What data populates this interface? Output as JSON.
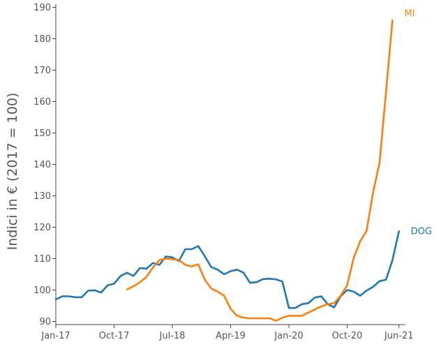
{
  "chart_data": {
    "type": "line",
    "title": "",
    "xlabel": "",
    "ylabel": "Indici in € (2017 = 100)",
    "ylim": [
      89,
      191
    ],
    "yticks": [
      90,
      100,
      110,
      120,
      130,
      140,
      150,
      160,
      170,
      180,
      190
    ],
    "xlim": [
      "2017-01",
      "2021-07"
    ],
    "xticks": [
      {
        "date": "2017-01",
        "label": "Jan-17"
      },
      {
        "date": "2017-10",
        "label": "Oct-17"
      },
      {
        "date": "2018-07",
        "label": "Jul-18"
      },
      {
        "date": "2019-04",
        "label": "Apr-19"
      },
      {
        "date": "2020-01",
        "label": "Jan-20"
      },
      {
        "date": "2020-10",
        "label": "Oct-20"
      },
      {
        "date": "2021-06",
        "label": "Jun-21"
      }
    ],
    "grid": false,
    "legend": "end-of-line labels",
    "series": [
      {
        "name": "DOG",
        "color": "#1f77b4",
        "x": [
          "2017-01",
          "2017-02",
          "2017-03",
          "2017-04",
          "2017-05",
          "2017-06",
          "2017-07",
          "2017-08",
          "2017-09",
          "2017-10",
          "2017-11",
          "2017-12",
          "2018-01",
          "2018-02",
          "2018-03",
          "2018-04",
          "2018-05",
          "2018-06",
          "2018-07",
          "2018-08",
          "2018-09",
          "2018-10",
          "2018-11",
          "2018-12",
          "2019-01",
          "2019-02",
          "2019-03",
          "2019-04",
          "2019-05",
          "2019-06",
          "2019-07",
          "2019-08",
          "2019-09",
          "2019-10",
          "2019-11",
          "2019-12",
          "2020-01",
          "2020-02",
          "2020-03",
          "2020-04",
          "2020-05",
          "2020-06",
          "2020-07",
          "2020-08",
          "2020-09",
          "2020-10",
          "2020-11",
          "2020-12",
          "2021-01",
          "2021-02",
          "2021-03",
          "2021-04",
          "2021-05",
          "2021-06"
        ],
        "y": [
          97.0,
          98.0,
          98.0,
          97.7,
          97.7,
          99.8,
          99.9,
          99.2,
          101.5,
          102.0,
          104.5,
          105.5,
          104.5,
          107.0,
          106.8,
          108.6,
          108.0,
          110.7,
          110.4,
          109.2,
          113.0,
          113.0,
          114.0,
          110.8,
          107.3,
          106.5,
          105.0,
          106.0,
          106.5,
          105.5,
          102.3,
          102.5,
          103.5,
          103.6,
          103.4,
          102.7,
          94.3,
          94.3,
          95.5,
          95.8,
          97.6,
          98.0,
          95.5,
          94.5,
          98.0,
          100.0,
          99.5,
          98.2,
          99.8,
          101.0,
          102.8,
          103.3,
          109.5,
          118.7
        ]
      },
      {
        "name": "MI",
        "color": "#ff7f0e",
        "x": [
          "2017-12",
          "2018-01",
          "2018-02",
          "2018-03",
          "2018-04",
          "2018-05",
          "2018-06",
          "2018-07",
          "2018-08",
          "2018-09",
          "2018-10",
          "2018-11",
          "2018-12",
          "2019-01",
          "2019-02",
          "2019-03",
          "2019-04",
          "2019-05",
          "2019-06",
          "2019-07",
          "2019-08",
          "2019-09",
          "2019-10",
          "2019-11",
          "2019-12",
          "2020-01",
          "2020-02",
          "2020-03",
          "2020-04",
          "2020-05",
          "2020-06",
          "2020-07",
          "2020-08",
          "2020-09",
          "2020-10",
          "2020-11",
          "2020-12",
          "2021-01",
          "2021-02",
          "2021-03",
          "2021-04",
          "2021-05"
        ],
        "y": [
          100.2,
          101.2,
          102.5,
          104.2,
          107.2,
          109.5,
          110.0,
          109.8,
          109.6,
          108.0,
          107.5,
          108.2,
          103.3,
          100.5,
          99.5,
          98.2,
          94.0,
          91.8,
          91.2,
          91.0,
          91.0,
          91.0,
          91.0,
          90.2,
          91.2,
          91.8,
          91.8,
          91.8,
          92.8,
          93.8,
          94.8,
          95.5,
          95.8,
          98.2,
          101.5,
          110.2,
          115.5,
          118.8,
          131.0,
          140.5,
          163.0,
          185.8
        ]
      }
    ]
  }
}
